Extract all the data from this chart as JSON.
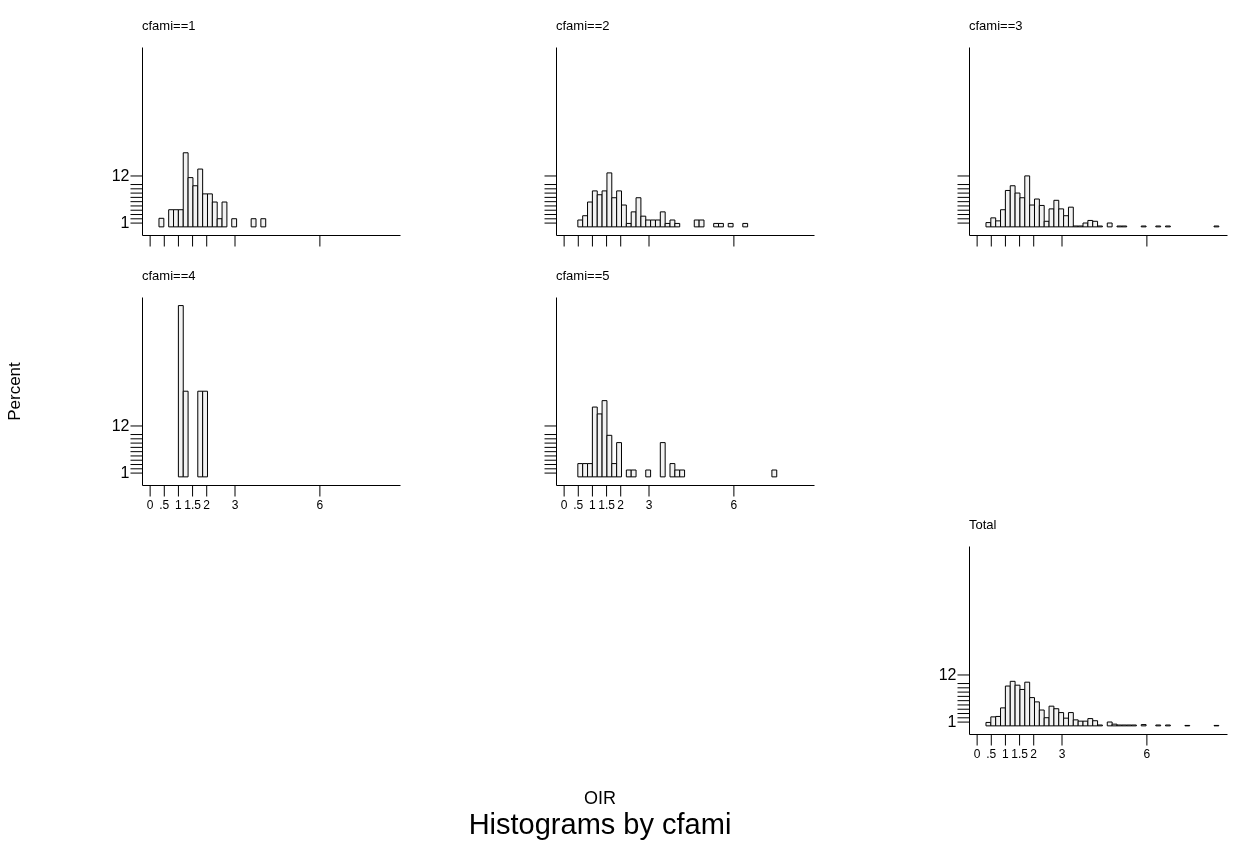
{
  "chart_data": [
    {
      "type": "histogram",
      "title": "cfami==1",
      "color": "#f2f2f2",
      "tick_labels": "y",
      "grid": false,
      "bins": [
        0.33,
        0.502,
        0.673,
        0.845,
        1.016,
        1.188,
        1.359,
        1.531,
        1.702,
        1.874,
        2.045,
        2.217,
        2.388,
        2.56,
        2.731,
        2.903,
        3.074,
        3.246,
        3.417,
        3.589,
        3.76,
        3.932,
        4.103,
        4.275,
        4.446,
        4.618,
        4.789,
        4.961,
        5.132,
        5.304,
        5.475,
        5.647,
        5.818,
        5.99,
        6.161,
        6.333,
        6.504,
        6.676,
        6.847,
        7.019,
        7.19,
        7.362,
        7.533,
        7.705,
        7.876,
        8.048,
        8.219,
        8.391,
        8.562
      ],
      "values": [
        2,
        0,
        4,
        4,
        4,
        17.3,
        11.5,
        9.6,
        13.5,
        7.7,
        7.7,
        5.8,
        1.9,
        5.8,
        0,
        1.9,
        0,
        0,
        0,
        1.9,
        0,
        1.9,
        0,
        0,
        0,
        0,
        0,
        0,
        0,
        0,
        0,
        0,
        0,
        0,
        0,
        0,
        0,
        0,
        0,
        0,
        0,
        0,
        0,
        0,
        0,
        0,
        0,
        0
      ],
      "xlim": [
        -0.27,
        8.85
      ],
      "ylim": [
        -1.9,
        42
      ],
      "xticks": [
        {
          "value": 0,
          "label": null
        },
        {
          "value": 0.5,
          "label": null
        },
        {
          "value": 1,
          "label": null
        },
        {
          "value": 1.5,
          "label": null
        },
        {
          "value": 2,
          "label": null
        },
        {
          "value": 3,
          "label": null
        },
        {
          "value": 6,
          "label": null
        }
      ],
      "yticks": [
        1,
        {
          "value": 2,
          "label": null
        },
        {
          "value": 3,
          "label": null
        },
        {
          "value": 4,
          "label": null
        },
        {
          "value": 5,
          "label": null
        },
        {
          "value": 6,
          "label": null
        },
        {
          "value": 7,
          "label": null
        },
        {
          "value": 8,
          "label": null
        },
        {
          "value": 9,
          "label": null
        },
        {
          "value": 10,
          "label": null
        },
        12
      ]
    },
    {
      "type": "histogram",
      "title": "cfami==2",
      "color": "#f2f2f2",
      "tick_labels": false,
      "grid": false,
      "bins": [
        0.33,
        0.502,
        0.673,
        0.845,
        1.016,
        1.188,
        1.359,
        1.531,
        1.702,
        1.874,
        2.045,
        2.217,
        2.388,
        2.56,
        2.731,
        2.903,
        3.074,
        3.246,
        3.417,
        3.589,
        3.76,
        3.932,
        4.103,
        4.275,
        4.446,
        4.618,
        4.789,
        4.961,
        5.132,
        5.304,
        5.475,
        5.647,
        5.818,
        5.99,
        6.161,
        6.333,
        6.504,
        6.676,
        6.847,
        7.019,
        7.19,
        7.362,
        7.533,
        7.705,
        7.876,
        8.048,
        8.219,
        8.391,
        8.562
      ],
      "values": [
        0,
        1.6,
        2.6,
        5.8,
        8.4,
        7.5,
        8.4,
        12.6,
        6.8,
        8.4,
        5.1,
        0.8,
        3.5,
        6.8,
        2.5,
        1.6,
        1.6,
        1.6,
        3.5,
        0.8,
        1.6,
        0.8,
        0,
        0,
        0,
        1.6,
        1.6,
        0,
        0,
        0.8,
        0.8,
        0,
        0.8,
        0,
        0,
        0.8,
        0,
        0,
        0,
        0,
        0,
        0,
        0,
        0,
        0,
        0,
        0,
        0
      ],
      "xlim": [
        -0.27,
        8.85
      ],
      "ylim": [
        -1.9,
        42
      ],
      "xticks": [
        {
          "value": 0,
          "label": null
        },
        {
          "value": 0.5,
          "label": null
        },
        {
          "value": 1,
          "label": null
        },
        {
          "value": 1.5,
          "label": null
        },
        {
          "value": 2,
          "label": null
        },
        {
          "value": 3,
          "label": null
        },
        {
          "value": 6,
          "label": null
        }
      ],
      "yticks": [
        1,
        2,
        3,
        4,
        5,
        6,
        7,
        8,
        9,
        10,
        12
      ]
    },
    {
      "type": "histogram",
      "title": "cfami==3",
      "color": "#f2f2f2",
      "tick_labels": false,
      "grid": false,
      "bins": [
        0.33,
        0.502,
        0.673,
        0.845,
        1.016,
        1.188,
        1.359,
        1.531,
        1.702,
        1.874,
        2.045,
        2.217,
        2.388,
        2.56,
        2.731,
        2.903,
        3.074,
        3.246,
        3.417,
        3.589,
        3.76,
        3.932,
        4.103,
        4.275,
        4.446,
        4.618,
        4.789,
        4.961,
        5.132,
        5.304,
        5.475,
        5.647,
        5.818,
        5.99,
        6.161,
        6.333,
        6.504,
        6.676,
        6.847,
        7.019,
        7.19,
        7.362,
        7.533,
        7.705,
        7.876,
        8.048,
        8.219,
        8.391,
        8.562
      ],
      "values": [
        1.0,
        2.1,
        1.4,
        4.0,
        8.5,
        9.6,
        7.9,
        6.8,
        11.9,
        5.1,
        6.5,
        5.0,
        1.3,
        4.2,
        6.2,
        4.2,
        2.6,
        4.6,
        0.2,
        0.2,
        0.9,
        1.5,
        1.3,
        0.2,
        0,
        0.9,
        0,
        0.2,
        0.2,
        0,
        0,
        0,
        0.2,
        0,
        0,
        0.2,
        0,
        0.2,
        0,
        0,
        0,
        0,
        0,
        0,
        0,
        0,
        0,
        0.2
      ],
      "xlim": [
        -0.27,
        8.85
      ],
      "ylim": [
        -1.9,
        42
      ],
      "xticks": [
        {
          "value": 0,
          "label": null
        },
        {
          "value": 0.5,
          "label": null
        },
        {
          "value": 1,
          "label": null
        },
        {
          "value": 1.5,
          "label": null
        },
        {
          "value": 2,
          "label": null
        },
        {
          "value": 3,
          "label": null
        },
        {
          "value": 6,
          "label": null
        }
      ],
      "yticks": [
        1,
        2,
        3,
        4,
        5,
        6,
        7,
        8,
        9,
        10,
        12
      ]
    },
    {
      "type": "histogram",
      "title": "cfami==4",
      "ylabel": "Percent",
      "color": "#f2f2f2",
      "grid": false,
      "bins": [
        0.33,
        0.502,
        0.673,
        0.845,
        1.016,
        1.188,
        1.359,
        1.531,
        1.702,
        1.874,
        2.045,
        2.217,
        2.388,
        2.56,
        2.731,
        2.903,
        3.074,
        3.246,
        3.417,
        3.589,
        3.76,
        3.932,
        4.103,
        4.275,
        4.446,
        4.618,
        4.789,
        4.961,
        5.132,
        5.304,
        5.475,
        5.647,
        5.818,
        5.99,
        6.161,
        6.333,
        6.504,
        6.676,
        6.847,
        7.019,
        7.19,
        7.362,
        7.533,
        7.705,
        7.876,
        8.048,
        8.219,
        8.391,
        8.562
      ],
      "values": [
        0,
        0,
        0,
        0,
        40,
        20,
        0,
        0,
        20,
        20,
        0,
        0,
        0,
        0,
        0,
        0,
        0,
        0,
        0,
        0,
        0,
        0,
        0,
        0,
        0,
        0,
        0,
        0,
        0,
        0,
        0,
        0,
        0,
        0,
        0,
        0,
        0,
        0,
        0,
        0,
        0,
        0,
        0,
        0,
        0,
        0,
        0,
        0
      ],
      "xlim": [
        -0.27,
        8.85
      ],
      "ylim": [
        -1.9,
        42
      ],
      "xticks": [
        0,
        {
          "value": 0.5,
          "label": ".5"
        },
        1,
        1.5,
        2,
        3,
        6
      ],
      "yticks": [
        1,
        {
          "value": 2,
          "label": null
        },
        {
          "value": 3,
          "label": null
        },
        {
          "value": 4,
          "label": null
        },
        {
          "value": 5,
          "label": null
        },
        {
          "value": 6,
          "label": null
        },
        {
          "value": 7,
          "label": null
        },
        {
          "value": 8,
          "label": null
        },
        {
          "value": 9,
          "label": null
        },
        {
          "value": 10,
          "label": null
        },
        12
      ]
    },
    {
      "type": "histogram",
      "title": "cfami==5",
      "xlabel": "OIR",
      "annotations": [
        "Histograms by cfami"
      ],
      "color": "#f2f2f2",
      "tick_labels": "x",
      "grid": false,
      "bins": [
        0.33,
        0.502,
        0.673,
        0.845,
        1.016,
        1.188,
        1.359,
        1.531,
        1.702,
        1.874,
        2.045,
        2.217,
        2.388,
        2.56,
        2.731,
        2.903,
        3.074,
        3.246,
        3.417,
        3.589,
        3.76,
        3.932,
        4.103,
        4.275,
        4.446,
        4.618,
        4.789,
        4.961,
        5.132,
        5.304,
        5.475,
        5.647,
        5.818,
        5.99,
        6.161,
        6.333,
        6.504,
        6.676,
        6.847,
        7.019,
        7.19,
        7.362,
        7.533,
        7.705,
        7.876,
        8.048,
        8.219,
        8.391,
        8.562
      ],
      "values": [
        0,
        3.1,
        3.1,
        3.1,
        16.3,
        14.7,
        17.8,
        9.7,
        3.1,
        8.0,
        0,
        1.6,
        1.6,
        0,
        0,
        1.6,
        0,
        0,
        8.0,
        0,
        3.1,
        1.6,
        1.6,
        0,
        0,
        0,
        0,
        0,
        0,
        0,
        0,
        0,
        0,
        0,
        0,
        0,
        0,
        0,
        0,
        0,
        0,
        1.6,
        0,
        0,
        0,
        0,
        0,
        0
      ],
      "xlim": [
        -0.27,
        8.85
      ],
      "ylim": [
        -1.9,
        42
      ],
      "xticks": [
        0,
        {
          "value": 0.5,
          "label": ".5"
        },
        1,
        1.5,
        2,
        3,
        6
      ],
      "yticks": [
        1,
        2,
        3,
        4,
        5,
        6,
        7,
        8,
        9,
        10,
        12
      ]
    },
    {
      "type": "histogram",
      "title": "Total",
      "color": "#f2f2f2",
      "grid": false,
      "bins": [
        0.33,
        0.502,
        0.673,
        0.845,
        1.016,
        1.188,
        1.359,
        1.531,
        1.702,
        1.874,
        2.045,
        2.217,
        2.388,
        2.56,
        2.731,
        2.903,
        3.074,
        3.246,
        3.417,
        3.589,
        3.76,
        3.932,
        4.103,
        4.275,
        4.446,
        4.618,
        4.789,
        4.961,
        5.132,
        5.304,
        5.475,
        5.647,
        5.818,
        5.99,
        6.161,
        6.333,
        6.504,
        6.676,
        6.847,
        7.019,
        7.19,
        7.362,
        7.533,
        7.705,
        7.876,
        8.048,
        8.219,
        8.391,
        8.562
      ],
      "values": [
        0.8,
        2.1,
        2.2,
        4.2,
        9.3,
        10.4,
        9.5,
        8.5,
        10.2,
        6.6,
        5.6,
        3.7,
        1.9,
        4.6,
        4.0,
        3.1,
        1.8,
        3.1,
        1.4,
        1.1,
        1.1,
        1.7,
        1.2,
        0.2,
        0,
        0.9,
        0.4,
        0.2,
        0.2,
        0.2,
        0.2,
        0,
        0.3,
        0,
        0,
        0.2,
        0,
        0.2,
        0,
        0,
        0,
        0.1,
        0,
        0,
        0,
        0,
        0,
        0.1
      ],
      "xlim": [
        -0.27,
        8.85
      ],
      "ylim": [
        -1.9,
        42
      ],
      "xticks": [
        0,
        {
          "value": 0.5,
          "label": ".5"
        },
        1,
        1.5,
        2,
        3,
        6
      ],
      "yticks": [
        1,
        {
          "value": 2,
          "label": null
        },
        {
          "value": 3,
          "label": null
        },
        {
          "value": 4,
          "label": null
        },
        {
          "value": 5,
          "label": null
        },
        {
          "value": 6,
          "label": null
        },
        {
          "value": 7,
          "label": null
        },
        {
          "value": 8,
          "label": null
        },
        {
          "value": 9,
          "label": null
        },
        {
          "value": 10,
          "label": null
        },
        12
      ]
    }
  ]
}
